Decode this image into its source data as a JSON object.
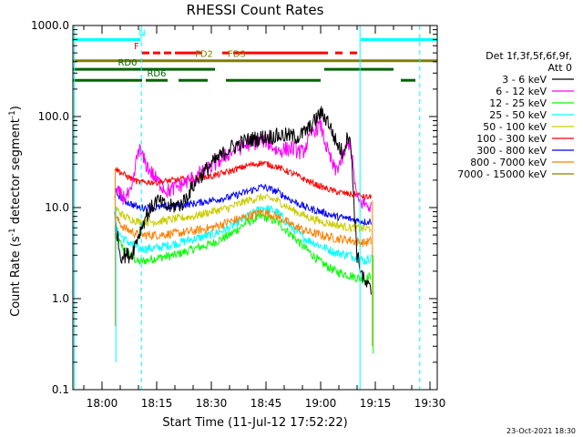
{
  "chart_data": {
    "type": "line",
    "title": "RHESSI Count Rates",
    "xlabel": "Start Time (11-Jul-12 17:52:22)",
    "ylabel_main": "Count Rate (s",
    "ylabel_sup1": "-1",
    "ylabel_mid": " detector segment",
    "ylabel_sup2": "-1",
    "ylabel_end": ")",
    "yscale": "log",
    "ylim": [
      0.1,
      1000
    ],
    "xlim_minutes_after_1800": [
      -8,
      92
    ],
    "ytick_values": [
      0.1,
      1,
      10,
      100,
      1000
    ],
    "ytick_labels": [
      "0.1",
      "1.0",
      "10.0",
      "100.0",
      "1000.0"
    ],
    "xtick_values": [
      0,
      15,
      30,
      45,
      60,
      75,
      90
    ],
    "xtick_labels": [
      "18:00",
      "18:15",
      "18:30",
      "18:45",
      "19:00",
      "19:15",
      "19:30"
    ],
    "legend_header": [
      "Det 1f,3f,5f,6f,9f,",
      "Att 0"
    ],
    "footer_date": "23-Oct-2021 18:30",
    "data_start_minute": 3.5,
    "data_end_minute": 74,
    "series": [
      {
        "name": "3 - 6 keV",
        "color": "#000000",
        "points": [
          [
            3.5,
            8
          ],
          [
            5,
            3.0
          ],
          [
            8,
            3.0
          ],
          [
            10,
            5
          ],
          [
            12,
            8
          ],
          [
            15,
            12
          ],
          [
            18,
            10
          ],
          [
            22,
            11
          ],
          [
            26,
            20
          ],
          [
            30,
            30
          ],
          [
            35,
            45
          ],
          [
            40,
            55
          ],
          [
            45,
            60
          ],
          [
            50,
            62
          ],
          [
            54,
            60
          ],
          [
            57,
            75
          ],
          [
            60,
            110
          ],
          [
            62,
            90
          ],
          [
            64,
            55
          ],
          [
            66,
            40
          ],
          [
            68,
            70
          ],
          [
            70,
            3
          ],
          [
            72,
            1.5
          ],
          [
            74,
            1.2
          ]
        ]
      },
      {
        "name": "6 - 12 keV",
        "color": "#ff00ff",
        "points": [
          [
            3.5,
            15
          ],
          [
            6,
            13
          ],
          [
            8,
            14
          ],
          [
            10,
            45
          ],
          [
            12,
            30
          ],
          [
            15,
            20
          ],
          [
            18,
            15
          ],
          [
            22,
            18
          ],
          [
            26,
            22
          ],
          [
            30,
            28
          ],
          [
            35,
            40
          ],
          [
            40,
            50
          ],
          [
            45,
            55
          ],
          [
            48,
            42
          ],
          [
            52,
            45
          ],
          [
            55,
            40
          ],
          [
            58,
            70
          ],
          [
            60,
            80
          ],
          [
            62,
            40
          ],
          [
            64,
            25
          ],
          [
            66,
            35
          ],
          [
            68,
            55
          ],
          [
            70,
            12
          ],
          [
            72,
            11
          ],
          [
            74,
            10
          ]
        ]
      },
      {
        "name": "12 - 25 keV",
        "color": "#00ff00",
        "points": [
          [
            3.5,
            5
          ],
          [
            6,
            3.5
          ],
          [
            10,
            2.5
          ],
          [
            15,
            2.8
          ],
          [
            20,
            3.0
          ],
          [
            25,
            3.5
          ],
          [
            30,
            4
          ],
          [
            35,
            5
          ],
          [
            40,
            7
          ],
          [
            44,
            8
          ],
          [
            48,
            7
          ],
          [
            52,
            5
          ],
          [
            56,
            3.5
          ],
          [
            60,
            2.5
          ],
          [
            64,
            2
          ],
          [
            68,
            1.8
          ],
          [
            70,
            1.7
          ],
          [
            72,
            1.6
          ],
          [
            74,
            1.8
          ]
        ]
      },
      {
        "name": "25 - 50 keV",
        "color": "#00ffff",
        "points": [
          [
            3.5,
            6
          ],
          [
            6,
            4.5
          ],
          [
            10,
            3.5
          ],
          [
            15,
            3.6
          ],
          [
            20,
            4
          ],
          [
            25,
            4.5
          ],
          [
            30,
            5
          ],
          [
            35,
            6
          ],
          [
            40,
            8
          ],
          [
            44,
            10
          ],
          [
            48,
            9
          ],
          [
            52,
            6
          ],
          [
            56,
            4.5
          ],
          [
            60,
            3.8
          ],
          [
            64,
            3.2
          ],
          [
            68,
            3
          ],
          [
            70,
            2.8
          ],
          [
            72,
            2.6
          ],
          [
            74,
            2.8
          ]
        ]
      },
      {
        "name": "50 - 100 keV",
        "color": "#cccc00",
        "points": [
          [
            3.5,
            10
          ],
          [
            6,
            8
          ],
          [
            10,
            7
          ],
          [
            15,
            7
          ],
          [
            20,
            7.5
          ],
          [
            25,
            8
          ],
          [
            30,
            9
          ],
          [
            35,
            10
          ],
          [
            40,
            12
          ],
          [
            44,
            13
          ],
          [
            48,
            12
          ],
          [
            52,
            9.5
          ],
          [
            56,
            8
          ],
          [
            60,
            7
          ],
          [
            64,
            6.5
          ],
          [
            68,
            6
          ],
          [
            70,
            6
          ],
          [
            72,
            5.8
          ],
          [
            74,
            6
          ]
        ]
      },
      {
        "name": "100 - 300 keV",
        "color": "#ff0000",
        "points": [
          [
            3.5,
            27
          ],
          [
            6,
            23
          ],
          [
            10,
            19
          ],
          [
            15,
            19
          ],
          [
            20,
            20
          ],
          [
            25,
            21
          ],
          [
            30,
            22
          ],
          [
            35,
            25
          ],
          [
            40,
            29
          ],
          [
            44,
            31
          ],
          [
            48,
            28
          ],
          [
            52,
            24
          ],
          [
            56,
            20
          ],
          [
            60,
            17
          ],
          [
            64,
            15
          ],
          [
            68,
            14
          ],
          [
            70,
            14
          ],
          [
            72,
            13
          ],
          [
            74,
            13
          ]
        ]
      },
      {
        "name": "300 - 800 keV",
        "color": "#0000ff",
        "points": [
          [
            3.5,
            15
          ],
          [
            6,
            12
          ],
          [
            10,
            10
          ],
          [
            15,
            10
          ],
          [
            20,
            10.5
          ],
          [
            25,
            11
          ],
          [
            30,
            12
          ],
          [
            35,
            13
          ],
          [
            40,
            15
          ],
          [
            44,
            17
          ],
          [
            48,
            15
          ],
          [
            52,
            12
          ],
          [
            56,
            10
          ],
          [
            60,
            9
          ],
          [
            64,
            8
          ],
          [
            68,
            7.5
          ],
          [
            70,
            7.2
          ],
          [
            72,
            7
          ],
          [
            74,
            7
          ]
        ]
      },
      {
        "name": "800 - 7000 keV",
        "color": "#ff8000",
        "points": [
          [
            3.5,
            8
          ],
          [
            6,
            6
          ],
          [
            10,
            5
          ],
          [
            15,
            5
          ],
          [
            20,
            5.2
          ],
          [
            25,
            5.5
          ],
          [
            30,
            6
          ],
          [
            35,
            7
          ],
          [
            40,
            8
          ],
          [
            44,
            9
          ],
          [
            48,
            8
          ],
          [
            52,
            6.5
          ],
          [
            56,
            5.5
          ],
          [
            60,
            5
          ],
          [
            64,
            4.6
          ],
          [
            68,
            4.4
          ],
          [
            70,
            4.2
          ],
          [
            72,
            4.1
          ],
          [
            74,
            4.3
          ]
        ]
      },
      {
        "name": "7000 - 15000 keV",
        "color": "#808000",
        "points": []
      }
    ],
    "attenuator_markers_minutes": [
      -7.6,
      10.8,
      70.8,
      87.2
    ],
    "state_bars": [
      {
        "label": "N",
        "color": "#00ffff",
        "row_value": 700,
        "label_minute": 11,
        "segments": [
          [
            -8,
            10.6
          ],
          [
            71,
            92
          ]
        ]
      },
      {
        "label": "F",
        "color": "#ff0000",
        "row_value": 500,
        "label_minute": 9.5,
        "dashed": true,
        "segments": [
          [
            11,
            13
          ],
          [
            14,
            16
          ],
          [
            17,
            19
          ],
          [
            20,
            27.5
          ],
          [
            33,
            35
          ],
          [
            36,
            62
          ],
          [
            64,
            66
          ],
          [
            68,
            70
          ]
        ]
      },
      {
        "label": "FD2",
        "color": "#808000",
        "row_value": 410,
        "label_minute": 28,
        "segments": [
          [
            -8,
            36
          ]
        ]
      },
      {
        "label": "FD3",
        "color": "#808000",
        "row_value": 410,
        "label_minute": 37,
        "segments": [
          [
            36,
            92
          ]
        ]
      },
      {
        "label": "RD0",
        "color": "#006400",
        "row_value": 330,
        "label_minute": 7,
        "segments": [
          [
            -8,
            31
          ],
          [
            61,
            80
          ]
        ]
      },
      {
        "label": "RD6",
        "color": "#006400",
        "row_value": 250,
        "label_minute": 15,
        "segments": [
          [
            -8,
            11
          ],
          [
            12,
            18
          ],
          [
            21,
            29
          ],
          [
            34,
            60
          ],
          [
            82,
            86
          ]
        ]
      }
    ]
  }
}
